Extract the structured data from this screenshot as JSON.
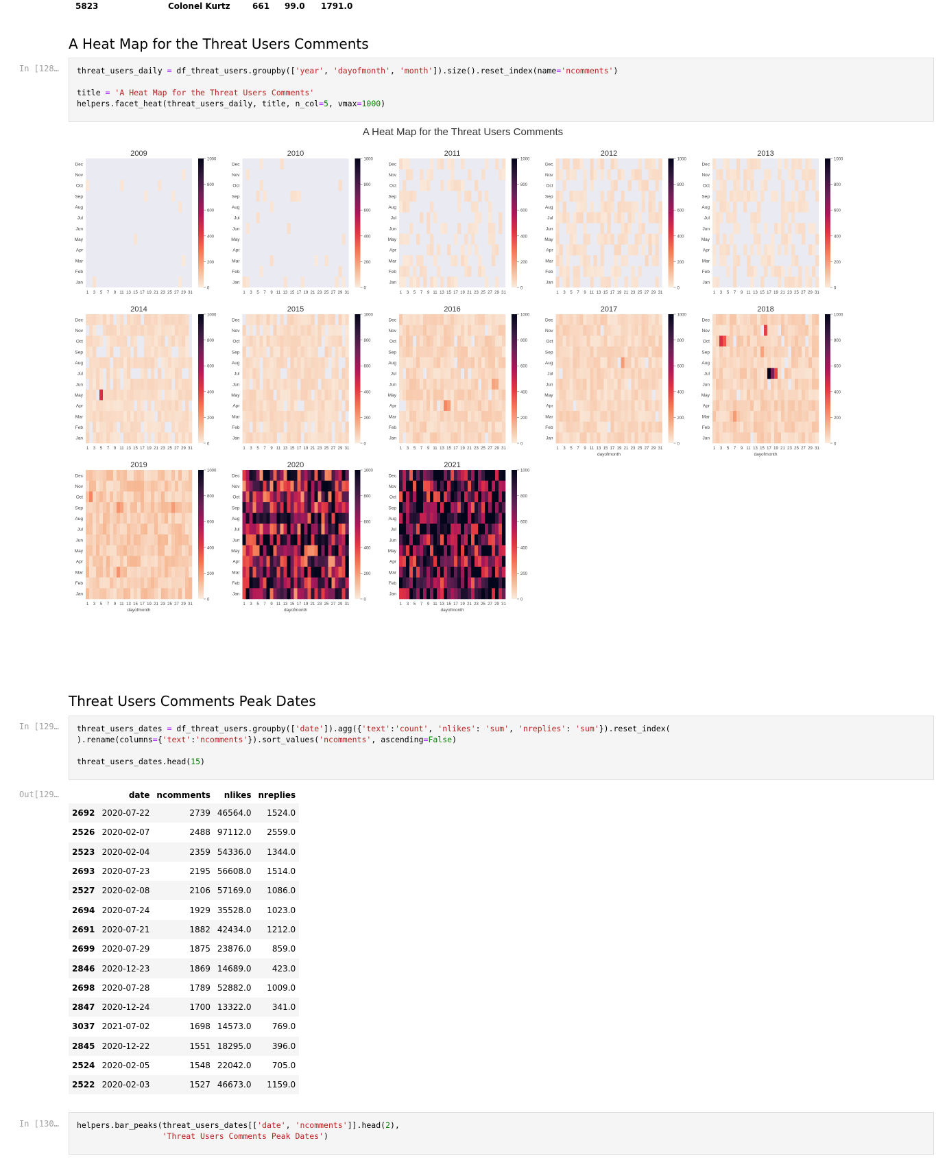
{
  "previous_row": {
    "cells": [
      "5823",
      "Colonel Kurtz",
      "661",
      "99.0",
      "1791.0"
    ]
  },
  "section1": {
    "heading": "A Heat Map for the Threat Users Comments"
  },
  "cell128": {
    "prompt": "In [128…",
    "lines": [
      [
        [
          "threat_users_daily ",
          "k"
        ],
        [
          "=",
          "o"
        ],
        [
          " df_threat_users.groupby([",
          "k"
        ],
        [
          "'year'",
          "s"
        ],
        [
          ", ",
          "k"
        ],
        [
          "'dayofmonth'",
          "s"
        ],
        [
          ", ",
          "k"
        ],
        [
          "'month'",
          "s"
        ],
        [
          "]).size().reset_index(name",
          "k"
        ],
        [
          "=",
          "o"
        ],
        [
          "'ncomments'",
          "s"
        ],
        [
          ")",
          "k"
        ]
      ],
      [],
      [
        [
          "title ",
          "k"
        ],
        [
          "=",
          "o"
        ],
        [
          " ",
          "k"
        ],
        [
          "'A Heat Map for the Threat Users Comments'",
          "s"
        ]
      ],
      [
        [
          "helpers.facet_heat(threat_users_daily, title, n_col",
          "k"
        ],
        [
          "=",
          "o"
        ],
        [
          "5",
          "n"
        ],
        [
          ", vmax",
          "k"
        ],
        [
          "=",
          "o"
        ],
        [
          "1000",
          "n"
        ],
        [
          ")",
          "k"
        ]
      ]
    ]
  },
  "figure": {
    "suptitle": "A Heat Map for the Threat Users Comments",
    "panel_titles": [
      "2009",
      "2010",
      "2011",
      "2012",
      "2013",
      "2014",
      "2015",
      "2016",
      "2017",
      "2018",
      "2019",
      "2020",
      "2021"
    ],
    "ylabel": "month",
    "xlabel": "dayofmonth",
    "month_labels": [
      "Dec",
      "Nov",
      "Oct",
      "Sep",
      "Aug",
      "Jul",
      "Jun",
      "May",
      "Apr",
      "Mar",
      "Feb",
      "Jan"
    ],
    "day_ticks": [
      "1",
      "3",
      "5",
      "7",
      "9",
      "11",
      "13",
      "15",
      "17",
      "19",
      "21",
      "23",
      "25",
      "27",
      "29",
      "31"
    ],
    "colorbar_ticks": [
      "1000",
      "800",
      "600",
      "400",
      "200",
      "0"
    ],
    "colors": {
      "missing": "#eaeaf2",
      "cmap": [
        "#faebdd",
        "#f6b48e",
        "#f37651",
        "#e13342",
        "#ad1759",
        "#701f57",
        "#35193e",
        "#03051a"
      ]
    }
  },
  "chart_data": {
    "type": "heatmap",
    "title": "A Heat Map for the Threat Users Comments",
    "xlabel": "dayofmonth",
    "ylabel": "month",
    "vmin": 0,
    "vmax": 1000,
    "facets": [
      {
        "year": "2009",
        "density": 0.03,
        "level": 15,
        "hotspots": []
      },
      {
        "year": "2010",
        "density": 0.06,
        "level": 20,
        "hotspots": []
      },
      {
        "year": "2011",
        "density": 0.3,
        "level": 25,
        "hotspots": []
      },
      {
        "year": "2012",
        "density": 0.55,
        "level": 30,
        "hotspots": []
      },
      {
        "year": "2013",
        "density": 0.45,
        "level": 25,
        "hotspots": []
      },
      {
        "year": "2014",
        "density": 0.85,
        "level": 35,
        "hotspots": [
          {
            "month": "May",
            "day": 5,
            "value": 450
          }
        ]
      },
      {
        "year": "2015",
        "density": 0.88,
        "level": 40,
        "hotspots": []
      },
      {
        "year": "2016",
        "density": 0.95,
        "level": 55,
        "hotspots": [
          {
            "month": "Apr",
            "day": 14,
            "value": 250
          },
          {
            "month": "Apr",
            "day": 15,
            "value": 200
          },
          {
            "month": "Jun",
            "day": 28,
            "value": 180
          },
          {
            "month": "Jun",
            "day": 29,
            "value": 160
          }
        ]
      },
      {
        "year": "2017",
        "density": 0.97,
        "level": 50,
        "hotspots": [
          {
            "month": "Aug",
            "day": 20,
            "value": 200
          }
        ]
      },
      {
        "year": "2018",
        "density": 0.98,
        "level": 60,
        "hotspots": [
          {
            "month": "Jul",
            "day": 17,
            "value": 1000
          },
          {
            "month": "Jul",
            "day": 18,
            "value": 700
          },
          {
            "month": "Jul",
            "day": 19,
            "value": 400
          },
          {
            "month": "Oct",
            "day": 3,
            "value": 450
          },
          {
            "month": "Oct",
            "day": 4,
            "value": 350
          },
          {
            "month": "Nov",
            "day": 16,
            "value": 400
          },
          {
            "month": "Sep",
            "day": 15,
            "value": 180
          },
          {
            "month": "Mar",
            "day": 7,
            "value": 200
          }
        ]
      },
      {
        "year": "2019",
        "density": 1.0,
        "level": 80,
        "hotspots": [
          {
            "month": "Oct",
            "day": 2,
            "value": 250
          },
          {
            "month": "Sep",
            "day": 10,
            "value": 220
          },
          {
            "month": "Sep",
            "day": 11,
            "value": 180
          },
          {
            "month": "Sep",
            "day": 26,
            "value": 200
          },
          {
            "month": "Mar",
            "day": 10,
            "value": 220
          }
        ]
      },
      {
        "year": "2020",
        "density": 1.0,
        "level": 650,
        "hotspots": []
      },
      {
        "year": "2021",
        "density": 1.0,
        "level": 780,
        "hotspots": []
      }
    ]
  },
  "section2": {
    "heading": "Threat Users Comments Peak Dates"
  },
  "cell129": {
    "prompt": "In [129…",
    "lines": [
      [
        [
          "threat_users_dates ",
          "k"
        ],
        [
          "=",
          "o"
        ],
        [
          " df_threat_users.groupby([",
          "k"
        ],
        [
          "'date'",
          "s"
        ],
        [
          "]).agg({",
          "k"
        ],
        [
          "'text'",
          "s"
        ],
        [
          ":",
          "k"
        ],
        [
          "'count'",
          "s"
        ],
        [
          ", ",
          "k"
        ],
        [
          "'nlikes'",
          "s"
        ],
        [
          ": ",
          "k"
        ],
        [
          "'sum'",
          "s"
        ],
        [
          ", ",
          "k"
        ],
        [
          "'nreplies'",
          "s"
        ],
        [
          ": ",
          "k"
        ],
        [
          "'sum'",
          "s"
        ],
        [
          "}).reset_index(",
          "k"
        ]
      ],
      [
        [
          ").rename(columns",
          "k"
        ],
        [
          "=",
          "o"
        ],
        [
          "{",
          "k"
        ],
        [
          "'text'",
          "s"
        ],
        [
          ":",
          "k"
        ],
        [
          "'ncomments'",
          "s"
        ],
        [
          "}).sort_values(",
          "k"
        ],
        [
          "'ncomments'",
          "s"
        ],
        [
          ", ascending",
          "k"
        ],
        [
          "=",
          "o"
        ],
        [
          "False",
          "n"
        ],
        [
          ")",
          "k"
        ]
      ],
      [],
      [
        [
          "threat_users_dates.head(",
          "k"
        ],
        [
          "15",
          "n"
        ],
        [
          ")",
          "k"
        ]
      ]
    ]
  },
  "out129": {
    "prompt": "Out[129…",
    "columns": [
      "",
      "date",
      "ncomments",
      "nlikes",
      "nreplies"
    ],
    "rows": [
      [
        "2692",
        "2020-07-22",
        "2739",
        "46564.0",
        "1524.0"
      ],
      [
        "2526",
        "2020-02-07",
        "2488",
        "97112.0",
        "2559.0"
      ],
      [
        "2523",
        "2020-02-04",
        "2359",
        "54336.0",
        "1344.0"
      ],
      [
        "2693",
        "2020-07-23",
        "2195",
        "56608.0",
        "1514.0"
      ],
      [
        "2527",
        "2020-02-08",
        "2106",
        "57169.0",
        "1086.0"
      ],
      [
        "2694",
        "2020-07-24",
        "1929",
        "35528.0",
        "1023.0"
      ],
      [
        "2691",
        "2020-07-21",
        "1882",
        "42434.0",
        "1212.0"
      ],
      [
        "2699",
        "2020-07-29",
        "1875",
        "23876.0",
        "859.0"
      ],
      [
        "2846",
        "2020-12-23",
        "1869",
        "14689.0",
        "423.0"
      ],
      [
        "2698",
        "2020-07-28",
        "1789",
        "52882.0",
        "1009.0"
      ],
      [
        "2847",
        "2020-12-24",
        "1700",
        "13322.0",
        "341.0"
      ],
      [
        "3037",
        "2021-07-02",
        "1698",
        "14573.0",
        "769.0"
      ],
      [
        "2845",
        "2020-12-22",
        "1551",
        "18295.0",
        "396.0"
      ],
      [
        "2524",
        "2020-02-05",
        "1548",
        "22042.0",
        "705.0"
      ],
      [
        "2522",
        "2020-02-03",
        "1527",
        "46673.0",
        "1159.0"
      ]
    ]
  },
  "cell130": {
    "prompt": "In [130…",
    "lines": [
      [
        [
          "helpers.bar_peaks(threat_users_dates[[",
          "k"
        ],
        [
          "'date'",
          "s"
        ],
        [
          ", ",
          "k"
        ],
        [
          "'ncomments'",
          "s"
        ],
        [
          "]].head(",
          "k"
        ],
        [
          "2",
          "n"
        ],
        [
          "),",
          "k"
        ]
      ],
      [
        [
          "                  ",
          "k"
        ],
        [
          "'Threat Users Comments Peak Dates'",
          "s"
        ],
        [
          ")",
          "k"
        ]
      ]
    ]
  }
}
